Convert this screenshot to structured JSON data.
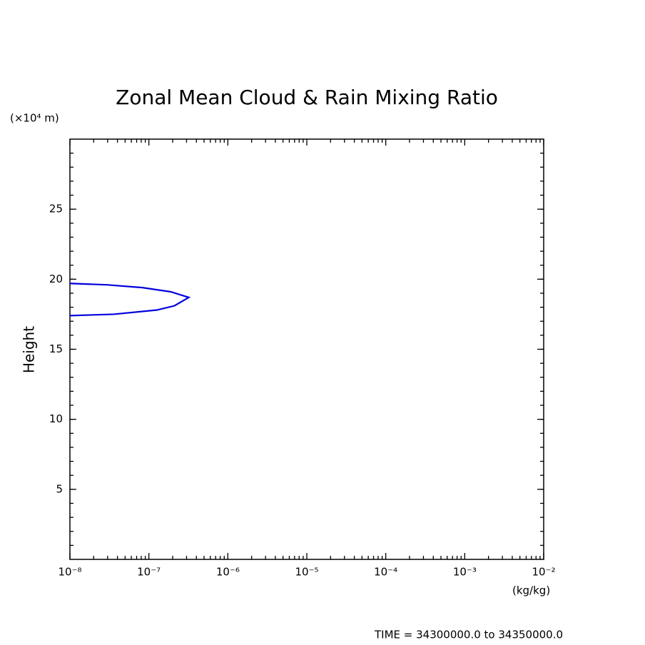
{
  "chart_data": {
    "type": "line",
    "title": "Zonal Mean Cloud & Rain Mixing Ratio",
    "y_unit_label": "(×10⁴ m)",
    "ylabel": "Height",
    "x_unit_label": "(kg/kg)",
    "footer": "TIME = 34300000.0 to 34350000.0",
    "xscale": "log",
    "xlim": [
      1e-08,
      0.01
    ],
    "xticks": [
      {
        "value": 1e-08,
        "label": "10⁻⁸"
      },
      {
        "value": 1e-07,
        "label": "10⁻⁷"
      },
      {
        "value": 1e-06,
        "label": "10⁻⁶"
      },
      {
        "value": 1e-05,
        "label": "10⁻⁵"
      },
      {
        "value": 0.0001,
        "label": "10⁻⁴"
      },
      {
        "value": 0.001,
        "label": "10⁻³"
      },
      {
        "value": 0.01,
        "label": "10⁻²"
      }
    ],
    "ylim": [
      0,
      30
    ],
    "yticks": [
      5,
      10,
      15,
      20,
      25
    ],
    "series": [
      {
        "color": "#0000dd",
        "x": [
          1e-08,
          2.95e-08,
          8.3e-08,
          1.9e-07,
          3.2e-07,
          2.1e-07,
          1.26e-07,
          3.6e-08,
          1e-08
        ],
        "values": [
          19.7,
          19.6,
          19.4,
          19.1,
          18.7,
          18.1,
          17.8,
          17.5,
          17.4
        ]
      }
    ]
  }
}
